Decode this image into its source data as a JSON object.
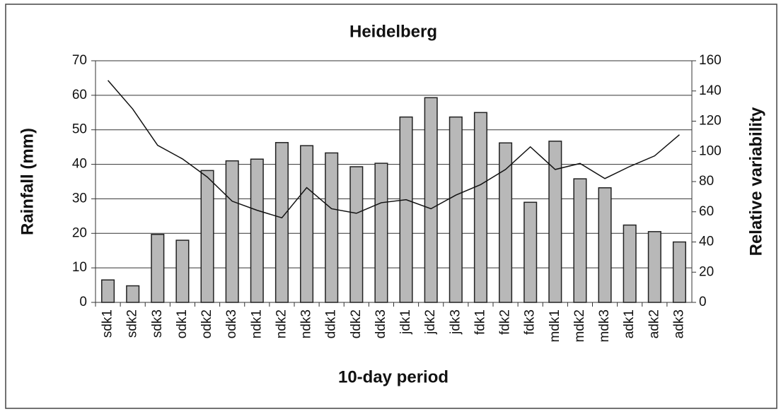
{
  "chart_data": {
    "type": "bar",
    "title": "Heidelberg",
    "x_label": "10-day period",
    "y_label": "Rainfall (mm)",
    "y2_label": "Relative variability",
    "categories": [
      "sdk1",
      "sdk2",
      "sdk3",
      "odk1",
      "odk2",
      "odk3",
      "ndk1",
      "ndk2",
      "ndk3",
      "ddk1",
      "ddk2",
      "ddk3",
      "jdk1",
      "jdk2",
      "jdk3",
      "fdk1",
      "fdk2",
      "fdk3",
      "mdk1",
      "mdk2",
      "mdk3",
      "adk1",
      "adk2",
      "adk3"
    ],
    "series": [
      {
        "type": "bar",
        "color": "#b8b8b8",
        "values": [
          6.5,
          4.8,
          19.7,
          18,
          38.2,
          41,
          41.5,
          46.3,
          45.4,
          43.3,
          39.3,
          40.3,
          53.7,
          59.3,
          53.7,
          55,
          46.2,
          29,
          46.7,
          35.8,
          33.2,
          22.4,
          20.5,
          17.5
        ]
      },
      {
        "type": "line",
        "color": "#111111",
        "axis": "y2",
        "values": [
          147,
          128,
          104,
          95,
          83,
          67,
          61,
          56,
          76,
          62,
          59,
          66,
          68,
          62,
          71,
          78,
          88,
          103,
          88,
          92,
          82,
          90,
          97,
          111
        ]
      }
    ],
    "ylim": [
      0,
      70
    ],
    "yticks": [
      0,
      10,
      20,
      30,
      40,
      50,
      60,
      70
    ],
    "y2lim": [
      0,
      160
    ],
    "y2ticks": [
      0,
      20,
      40,
      60,
      80,
      100,
      120,
      140,
      160
    ],
    "grid": true
  }
}
